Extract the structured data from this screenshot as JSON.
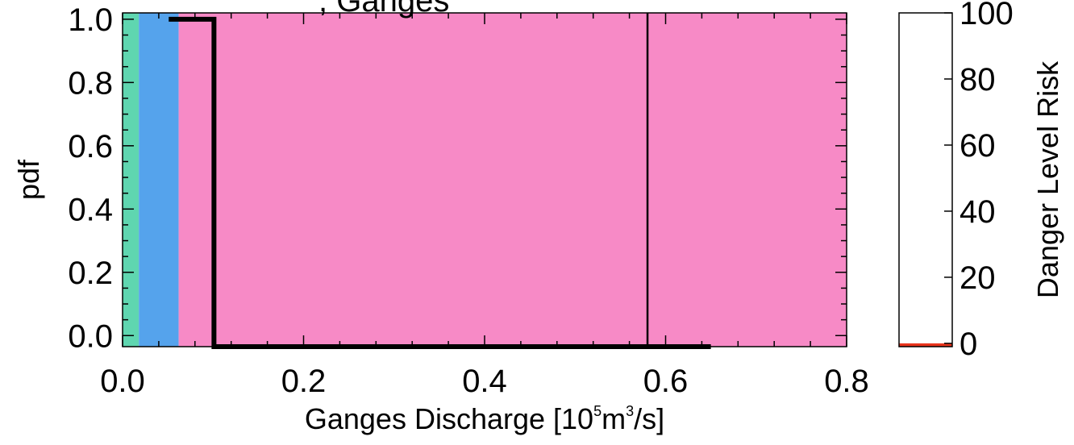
{
  "chart_data": [
    {
      "type": "area",
      "title": ", Ganges",
      "xlabel": "Ganges Discharge [10",
      "xlabel_sup1": "5",
      "xlabel_mid": "m",
      "xlabel_sup2": "3",
      "xlabel_end": "/s]",
      "ylabel": "pdf",
      "xlim": [
        0.0,
        0.8
      ],
      "ylim": [
        -0.035,
        1.02
      ],
      "x_ticks": [
        {
          "value": 0.0,
          "label": "0.0"
        },
        {
          "value": 0.2,
          "label": "0.2"
        },
        {
          "value": 0.4,
          "label": "0.4"
        },
        {
          "value": 0.6,
          "label": "0.6"
        },
        {
          "value": 0.8,
          "label": "0.8"
        }
      ],
      "y_ticks": [
        {
          "value": 0.0,
          "label": "0.0"
        },
        {
          "value": 0.2,
          "label": "0.2"
        },
        {
          "value": 0.4,
          "label": "0.4"
        },
        {
          "value": 0.6,
          "label": "0.6"
        },
        {
          "value": 0.8,
          "label": "0.8"
        },
        {
          "value": 1.0,
          "label": "1.0"
        }
      ],
      "bands": [
        {
          "x0": 0.0,
          "x1": 0.018,
          "color": "#5fd6b0"
        },
        {
          "x0": 0.018,
          "x1": 0.062,
          "color": "#55a3ec"
        },
        {
          "x0": 0.062,
          "x1": 0.8,
          "color": "#f78ac6"
        }
      ],
      "pdf_line": {
        "x": [
          0.051,
          0.101,
          0.101,
          0.65
        ],
        "y": [
          1.0,
          1.0,
          -0.035,
          -0.035
        ]
      },
      "threshold_line": {
        "x": 0.58
      }
    },
    {
      "type": "bar",
      "ylabel": "Danger Level Risk",
      "ylim": [
        -1,
        100
      ],
      "y_ticks": [
        {
          "value": 0,
          "label": "0"
        },
        {
          "value": 20,
          "label": "20"
        },
        {
          "value": 40,
          "label": "40"
        },
        {
          "value": 60,
          "label": "60"
        },
        {
          "value": 80,
          "label": "80"
        },
        {
          "value": 100,
          "label": "100"
        }
      ],
      "value": 0,
      "bar_color": "#e8341c"
    }
  ]
}
